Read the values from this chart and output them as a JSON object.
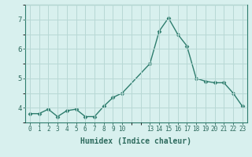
{
  "x": [
    0,
    1,
    2,
    3,
    4,
    5,
    6,
    7,
    8,
    9,
    10,
    13,
    14,
    15,
    16,
    17,
    18,
    19,
    20,
    21,
    22,
    23
  ],
  "y": [
    3.8,
    3.8,
    3.95,
    3.7,
    3.9,
    3.95,
    3.7,
    3.7,
    4.05,
    4.35,
    4.5,
    5.5,
    6.6,
    7.05,
    6.5,
    6.1,
    5.0,
    4.9,
    4.85,
    4.85,
    4.5,
    4.05
  ],
  "xticks": [
    0,
    1,
    2,
    3,
    4,
    5,
    6,
    7,
    8,
    9,
    10,
    13,
    14,
    15,
    16,
    17,
    18,
    19,
    20,
    21,
    22,
    23
  ],
  "xlim": [
    -0.5,
    23.5
  ],
  "ylim": [
    3.5,
    7.3
  ],
  "yticks": [
    4,
    5,
    6,
    7
  ],
  "xlabel": "Humidex (Indice chaleur)",
  "line_color": "#2e7d6e",
  "marker": "D",
  "marker_size": 2.5,
  "bg_color": "#d8f0ee",
  "grid_color": "#b8d8d5"
}
